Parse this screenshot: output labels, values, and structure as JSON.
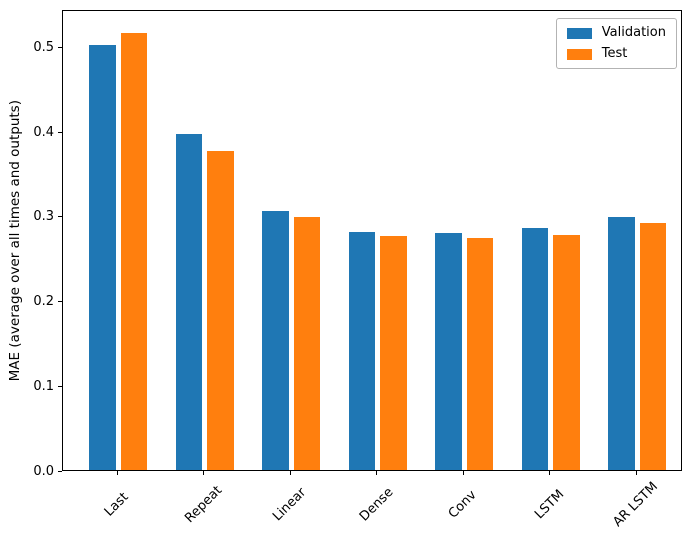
{
  "figure": {
    "background": "#ffffff",
    "spine_color": "#000000"
  },
  "chart_data": {
    "type": "bar",
    "title": "",
    "xlabel": "",
    "ylabel": "MAE (average over all times and outputs)",
    "categories": [
      "Last",
      "Repeat",
      "Linear",
      "Dense",
      "Conv",
      "LSTM",
      "AR LSTM"
    ],
    "series": [
      {
        "name": "Validation",
        "color": "#1f77b4",
        "values": [
          0.502,
          0.396,
          0.306,
          0.281,
          0.28,
          0.286,
          0.298
        ]
      },
      {
        "name": "Test",
        "color": "#ff7f0e",
        "values": [
          0.516,
          0.377,
          0.299,
          0.276,
          0.274,
          0.277,
          0.292
        ]
      }
    ],
    "ylim": [
      0.0,
      0.544
    ],
    "yticks": [
      0.0,
      0.1,
      0.2,
      0.3,
      0.4,
      0.5
    ],
    "ytick_labels": [
      "0.0",
      "0.1",
      "0.2",
      "0.3",
      "0.4",
      "0.5"
    ],
    "xtick_rotation": 45,
    "grid": false,
    "legend": {
      "position": "upper right",
      "frame": true
    }
  }
}
